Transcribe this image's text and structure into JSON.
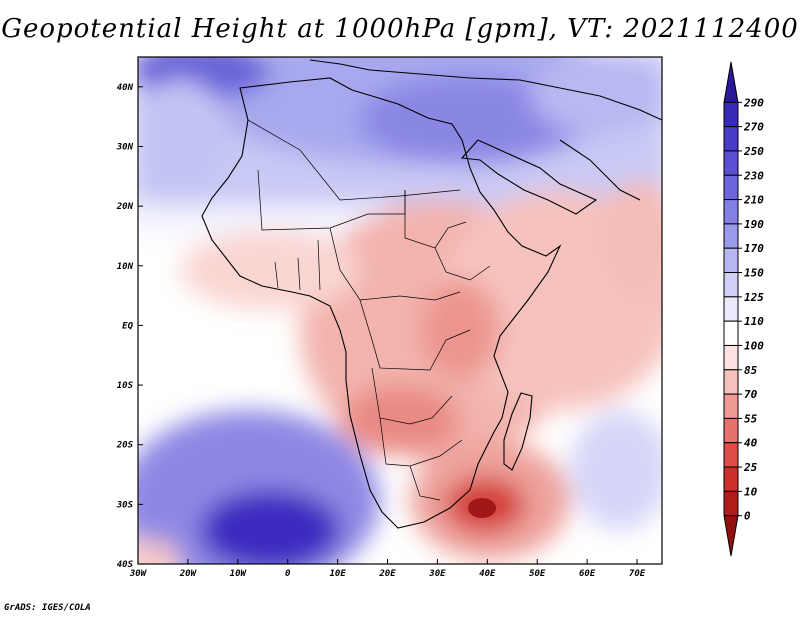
{
  "title": "Geopotential Height at 1000hPa [gpm], VT: 2021112400",
  "credit": "GrADS: IGES/COLA",
  "map": {
    "lat_labels": [
      "40N",
      "30N",
      "20N",
      "10N",
      "EQ",
      "10S",
      "20S",
      "30S",
      "40S"
    ],
    "lon_labels": [
      "30W",
      "20W",
      "10W",
      "0",
      "10E",
      "20E",
      "30E",
      "40E",
      "50E",
      "60E",
      "70E"
    ],
    "lat_range": [
      -40,
      45
    ],
    "lon_range": [
      -30,
      75
    ]
  },
  "colorbar": {
    "levels": [
      "290",
      "270",
      "250",
      "230",
      "210",
      "190",
      "170",
      "150",
      "125",
      "110",
      "100",
      "85",
      "70",
      "55",
      "40",
      "25",
      "10",
      "0"
    ],
    "colors": [
      "#2a1a99",
      "#3a2ab8",
      "#4a3ac8",
      "#5b4fd4",
      "#6e66dc",
      "#8480e4",
      "#9c9aec",
      "#b6b6f2",
      "#d0d0f8",
      "#ebebfc",
      "#ffffff",
      "#fde4e2",
      "#f7c0bc",
      "#ef9a94",
      "#e6726c",
      "#dd4e48",
      "#cc2e2a",
      "#b01c1a",
      "#921010"
    ]
  }
}
